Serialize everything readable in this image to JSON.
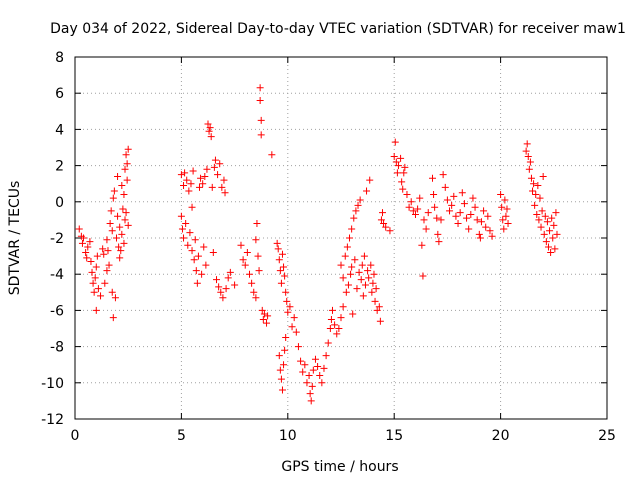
{
  "chart_data": {
    "type": "scatter",
    "title": "Day 034 of 2022, Sidereal Day-to-day VTEC variation (SDTVAR) for receiver maw1",
    "xlabel": "GPS time / hours",
    "ylabel": "SDTVAR / TECUs",
    "xlim": [
      0,
      25
    ],
    "ylim": [
      -12,
      8
    ],
    "xticks": [
      0,
      5,
      10,
      15,
      20,
      25
    ],
    "yticks": [
      -12,
      -10,
      -8,
      -6,
      -4,
      -2,
      0,
      2,
      4,
      6,
      8
    ],
    "xtick_labels": [
      "0",
      "5",
      "10",
      "15",
      "20",
      "25"
    ],
    "ytick_labels": [
      "-12",
      "-10",
      "-8",
      "-6",
      "-4",
      "-2",
      "0",
      "2",
      "4",
      "6",
      "8"
    ],
    "grid": true,
    "marker": "+",
    "color": "#ff0000",
    "series": [
      {
        "name": "maw1",
        "points": [
          [
            0.2,
            -1.5
          ],
          [
            0.3,
            -1.9
          ],
          [
            0.35,
            -2.3
          ],
          [
            0.4,
            -2.0
          ],
          [
            0.5,
            -2.8
          ],
          [
            0.55,
            -3.1
          ],
          [
            0.6,
            -2.5
          ],
          [
            0.7,
            -2.2
          ],
          [
            0.75,
            -3.3
          ],
          [
            0.8,
            -3.9
          ],
          [
            0.85,
            -4.5
          ],
          [
            0.9,
            -5.0
          ],
          [
            0.95,
            -4.2
          ],
          [
            1.0,
            -3.6
          ],
          [
            1.0,
            -6.0
          ],
          [
            1.05,
            -3.0
          ],
          [
            1.1,
            -4.8
          ],
          [
            1.2,
            -5.2
          ],
          [
            1.3,
            -2.6
          ],
          [
            1.35,
            -2.9
          ],
          [
            1.4,
            -4.5
          ],
          [
            1.5,
            -3.8
          ],
          [
            1.5,
            -2.1
          ],
          [
            1.55,
            -2.7
          ],
          [
            1.6,
            -3.5
          ],
          [
            1.65,
            -1.2
          ],
          [
            1.7,
            -0.5
          ],
          [
            1.75,
            -1.6
          ],
          [
            1.75,
            -5.0
          ],
          [
            1.8,
            0.2
          ],
          [
            1.8,
            -6.4
          ],
          [
            1.85,
            0.6
          ],
          [
            1.9,
            -5.3
          ],
          [
            1.95,
            -2.0
          ],
          [
            2.0,
            1.4
          ],
          [
            2.0,
            -0.8
          ],
          [
            2.05,
            -2.5
          ],
          [
            2.1,
            -1.4
          ],
          [
            2.1,
            -3.1
          ],
          [
            2.15,
            -2.7
          ],
          [
            2.2,
            0.9
          ],
          [
            2.2,
            -1.8
          ],
          [
            2.25,
            -0.4
          ],
          [
            2.3,
            0.4
          ],
          [
            2.3,
            -2.3
          ],
          [
            2.35,
            1.8
          ],
          [
            2.35,
            -1.0
          ],
          [
            2.4,
            2.6
          ],
          [
            2.4,
            -0.6
          ],
          [
            2.45,
            2.1
          ],
          [
            2.45,
            1.2
          ],
          [
            2.5,
            2.9
          ],
          [
            2.5,
            -1.3
          ],
          [
            5.0,
            1.5
          ],
          [
            5.0,
            -0.8
          ],
          [
            5.05,
            -1.5
          ],
          [
            5.1,
            0.9
          ],
          [
            5.1,
            -2.0
          ],
          [
            5.15,
            1.6
          ],
          [
            5.2,
            -1.2
          ],
          [
            5.25,
            1.2
          ],
          [
            5.3,
            -2.4
          ],
          [
            5.35,
            0.6
          ],
          [
            5.4,
            -1.7
          ],
          [
            5.45,
            1.0
          ],
          [
            5.5,
            -2.7
          ],
          [
            5.5,
            -0.3
          ],
          [
            5.55,
            1.7
          ],
          [
            5.6,
            -3.2
          ],
          [
            5.65,
            -2.1
          ],
          [
            5.7,
            -3.8
          ],
          [
            5.75,
            -4.5
          ],
          [
            5.8,
            -3.0
          ],
          [
            5.85,
            0.8
          ],
          [
            5.9,
            1.3
          ],
          [
            5.95,
            -4.0
          ],
          [
            6.0,
            1.0
          ],
          [
            6.05,
            -2.5
          ],
          [
            6.1,
            1.4
          ],
          [
            6.15,
            -3.5
          ],
          [
            6.2,
            1.8
          ],
          [
            6.25,
            4.3
          ],
          [
            6.3,
            3.9
          ],
          [
            6.35,
            4.1
          ],
          [
            6.4,
            3.6
          ],
          [
            6.45,
            0.8
          ],
          [
            6.5,
            -2.8
          ],
          [
            6.55,
            1.9
          ],
          [
            6.6,
            2.3
          ],
          [
            6.65,
            -4.3
          ],
          [
            6.7,
            1.5
          ],
          [
            6.75,
            -4.7
          ],
          [
            6.8,
            2.1
          ],
          [
            6.85,
            -5.0
          ],
          [
            6.9,
            0.8
          ],
          [
            6.95,
            -5.3
          ],
          [
            7.0,
            1.2
          ],
          [
            7.05,
            0.5
          ],
          [
            7.1,
            -4.8
          ],
          [
            7.2,
            -4.2
          ],
          [
            7.3,
            -3.9
          ],
          [
            7.5,
            -4.6
          ],
          [
            7.8,
            -2.4
          ],
          [
            7.9,
            -3.2
          ],
          [
            8.0,
            -3.5
          ],
          [
            8.1,
            -2.8
          ],
          [
            8.2,
            -4.0
          ],
          [
            8.3,
            -4.5
          ],
          [
            8.4,
            -5.0
          ],
          [
            8.5,
            -5.3
          ],
          [
            8.5,
            -2.1
          ],
          [
            8.55,
            -1.2
          ],
          [
            8.6,
            -3.0
          ],
          [
            8.65,
            -3.8
          ],
          [
            8.7,
            6.3
          ],
          [
            8.7,
            5.6
          ],
          [
            8.75,
            4.5
          ],
          [
            8.75,
            3.7
          ],
          [
            8.8,
            -6.0
          ],
          [
            8.85,
            -6.5
          ],
          [
            8.9,
            -6.2
          ],
          [
            9.0,
            -6.7
          ],
          [
            9.05,
            -6.3
          ],
          [
            9.25,
            2.6
          ],
          [
            9.5,
            -2.3
          ],
          [
            9.55,
            -2.6
          ],
          [
            9.6,
            -3.2
          ],
          [
            9.65,
            -3.8
          ],
          [
            9.7,
            -4.5
          ],
          [
            9.75,
            -2.9
          ],
          [
            9.8,
            -3.6
          ],
          [
            9.85,
            -4.1
          ],
          [
            9.9,
            -5.0
          ],
          [
            9.95,
            -5.5
          ],
          [
            9.6,
            -8.5
          ],
          [
            9.65,
            -9.3
          ],
          [
            9.7,
            -9.8
          ],
          [
            9.75,
            -10.4
          ],
          [
            9.8,
            -9.0
          ],
          [
            9.85,
            -8.2
          ],
          [
            9.9,
            -7.5
          ],
          [
            10.0,
            -6.1
          ],
          [
            10.1,
            -5.8
          ],
          [
            10.2,
            -6.9
          ],
          [
            10.3,
            -6.4
          ],
          [
            10.4,
            -7.2
          ],
          [
            10.5,
            -8.0
          ],
          [
            10.6,
            -8.8
          ],
          [
            10.7,
            -9.4
          ],
          [
            10.8,
            -9.0
          ],
          [
            10.9,
            -10.0
          ],
          [
            11.0,
            -9.6
          ],
          [
            11.05,
            -10.6
          ],
          [
            11.1,
            -11.0
          ],
          [
            11.15,
            -10.2
          ],
          [
            11.2,
            -9.3
          ],
          [
            11.3,
            -8.7
          ],
          [
            11.4,
            -9.1
          ],
          [
            11.5,
            -9.6
          ],
          [
            11.6,
            -10.0
          ],
          [
            11.7,
            -9.2
          ],
          [
            11.8,
            -8.5
          ],
          [
            11.9,
            -7.8
          ],
          [
            12.0,
            -7.0
          ],
          [
            12.05,
            -6.5
          ],
          [
            12.1,
            -6.0
          ],
          [
            12.2,
            -6.8
          ],
          [
            12.3,
            -7.3
          ],
          [
            12.4,
            -7.0
          ],
          [
            12.5,
            -6.4
          ],
          [
            12.5,
            -3.5
          ],
          [
            12.6,
            -4.2
          ],
          [
            12.6,
            -5.8
          ],
          [
            12.7,
            -3.0
          ],
          [
            12.75,
            -5.0
          ],
          [
            12.8,
            -2.5
          ],
          [
            12.85,
            -4.6
          ],
          [
            12.9,
            -2.0
          ],
          [
            12.95,
            -4.0
          ],
          [
            13.0,
            -1.5
          ],
          [
            13.0,
            -3.6
          ],
          [
            13.05,
            -6.2
          ],
          [
            13.1,
            -0.9
          ],
          [
            13.15,
            -3.2
          ],
          [
            13.2,
            -0.5
          ],
          [
            13.25,
            -4.8
          ],
          [
            13.3,
            -0.2
          ],
          [
            13.35,
            -3.9
          ],
          [
            13.4,
            0.1
          ],
          [
            13.45,
            -4.3
          ],
          [
            13.5,
            -3.5
          ],
          [
            13.55,
            -5.2
          ],
          [
            13.6,
            -3.0
          ],
          [
            13.65,
            -4.6
          ],
          [
            13.7,
            0.6
          ],
          [
            13.75,
            -3.8
          ],
          [
            13.8,
            -4.2
          ],
          [
            13.85,
            1.2
          ],
          [
            13.9,
            -3.5
          ],
          [
            13.95,
            -5.0
          ],
          [
            14.0,
            -4.5
          ],
          [
            14.05,
            -4.0
          ],
          [
            14.1,
            -5.5
          ],
          [
            14.15,
            -4.8
          ],
          [
            14.2,
            -6.0
          ],
          [
            14.3,
            -5.8
          ],
          [
            14.35,
            -6.6
          ],
          [
            14.4,
            -1.0
          ],
          [
            14.45,
            -0.6
          ],
          [
            14.5,
            -1.2
          ],
          [
            14.6,
            -1.4
          ],
          [
            14.8,
            -1.6
          ],
          [
            15.0,
            2.5
          ],
          [
            15.05,
            3.3
          ],
          [
            15.1,
            2.2
          ],
          [
            15.15,
            1.6
          ],
          [
            15.2,
            2.0
          ],
          [
            15.3,
            2.4
          ],
          [
            15.35,
            1.1
          ],
          [
            15.4,
            0.7
          ],
          [
            15.45,
            1.6
          ],
          [
            15.5,
            1.9
          ],
          [
            15.6,
            0.4
          ],
          [
            15.7,
            -0.3
          ],
          [
            15.8,
            0.0
          ],
          [
            15.9,
            -0.5
          ],
          [
            16.0,
            -0.7
          ],
          [
            16.1,
            -0.4
          ],
          [
            16.2,
            0.2
          ],
          [
            16.3,
            -2.4
          ],
          [
            16.35,
            -4.1
          ],
          [
            16.4,
            -1.0
          ],
          [
            16.5,
            -1.5
          ],
          [
            16.6,
            -0.6
          ],
          [
            16.8,
            1.3
          ],
          [
            16.85,
            0.4
          ],
          [
            16.9,
            -0.3
          ],
          [
            17.0,
            -0.9
          ],
          [
            17.05,
            -1.8
          ],
          [
            17.1,
            -2.2
          ],
          [
            17.2,
            -1.0
          ],
          [
            17.3,
            1.5
          ],
          [
            17.4,
            0.8
          ],
          [
            17.5,
            0.1
          ],
          [
            17.6,
            -0.5
          ],
          [
            17.7,
            -0.2
          ],
          [
            17.8,
            0.3
          ],
          [
            17.9,
            -0.8
          ],
          [
            18.0,
            -1.2
          ],
          [
            18.1,
            -0.6
          ],
          [
            18.2,
            0.5
          ],
          [
            18.3,
            -0.1
          ],
          [
            18.4,
            -0.9
          ],
          [
            18.5,
            -1.5
          ],
          [
            18.6,
            -0.7
          ],
          [
            18.7,
            0.2
          ],
          [
            18.8,
            -0.3
          ],
          [
            18.9,
            -1.0
          ],
          [
            19.0,
            -1.8
          ],
          [
            19.05,
            -2.0
          ],
          [
            19.1,
            -1.1
          ],
          [
            19.2,
            -0.5
          ],
          [
            19.3,
            -1.4
          ],
          [
            19.4,
            -0.8
          ],
          [
            19.5,
            -1.6
          ],
          [
            19.6,
            -1.9
          ],
          [
            20.0,
            0.4
          ],
          [
            20.05,
            -0.3
          ],
          [
            20.1,
            -1.0
          ],
          [
            20.15,
            -1.5
          ],
          [
            20.2,
            0.1
          ],
          [
            20.25,
            -0.8
          ],
          [
            20.3,
            -0.4
          ],
          [
            20.35,
            -1.2
          ],
          [
            21.2,
            2.8
          ],
          [
            21.25,
            3.2
          ],
          [
            21.3,
            2.5
          ],
          [
            21.35,
            1.8
          ],
          [
            21.4,
            2.2
          ],
          [
            21.45,
            1.3
          ],
          [
            21.5,
            0.6
          ],
          [
            21.55,
            1.0
          ],
          [
            21.6,
            -0.2
          ],
          [
            21.65,
            0.4
          ],
          [
            21.7,
            -0.7
          ],
          [
            21.75,
            0.9
          ],
          [
            21.8,
            -1.0
          ],
          [
            21.85,
            0.2
          ],
          [
            21.9,
            -1.4
          ],
          [
            21.95,
            -0.5
          ],
          [
            22.0,
            1.4
          ],
          [
            22.05,
            -1.8
          ],
          [
            22.1,
            -0.8
          ],
          [
            22.15,
            -2.2
          ],
          [
            22.2,
            -1.1
          ],
          [
            22.25,
            -2.5
          ],
          [
            22.3,
            -1.6
          ],
          [
            22.35,
            -2.8
          ],
          [
            22.4,
            -0.9
          ],
          [
            22.45,
            -2.0
          ],
          [
            22.5,
            -1.3
          ],
          [
            22.55,
            -2.6
          ],
          [
            22.6,
            -0.6
          ],
          [
            22.65,
            -1.8
          ]
        ]
      }
    ]
  }
}
